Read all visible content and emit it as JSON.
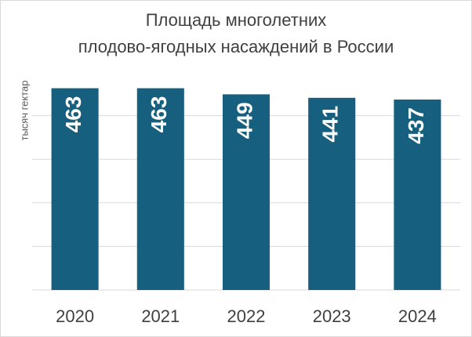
{
  "chart_data": {
    "type": "bar",
    "title": [
      "Площадь многолетних",
      "плодово-ягодных насаждений в России"
    ],
    "y_label": "тысяч гектар",
    "categories": [
      "2020",
      "2021",
      "2022",
      "2023",
      "2024"
    ],
    "values": [
      463,
      463,
      449,
      441,
      437
    ],
    "color": "#175f7e",
    "ylim": [
      0,
      500
    ],
    "yticks": [
      0,
      100,
      200,
      300,
      400
    ],
    "grid": true
  }
}
